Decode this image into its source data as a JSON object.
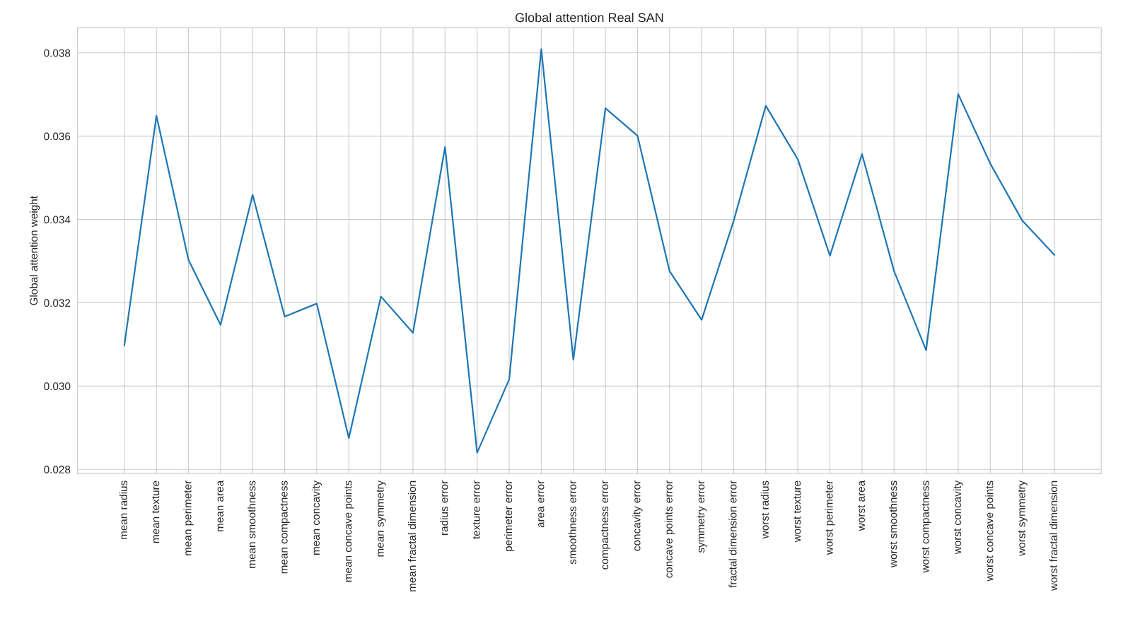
{
  "chart_data": {
    "type": "line",
    "title": "Global attention Real SAN",
    "ylabel": "Global attention weight",
    "categories": [
      "mean radius",
      "mean texture",
      "mean perimeter",
      "mean area",
      "mean smoothness",
      "mean compactness",
      "mean concavity",
      "mean concave points",
      "mean symmetry",
      "mean fractal dimension",
      "radius error",
      "texture error",
      "perimeter error",
      "area error",
      "smoothness error",
      "compactness error",
      "concavity error",
      "concave points error",
      "symmetry error",
      "fractal dimension error",
      "worst radius",
      "worst texture",
      "worst perimeter",
      "worst area",
      "worst smoothness",
      "worst compactness",
      "worst concavity",
      "worst concave points",
      "worst symmetry",
      "worst fractal dimension"
    ],
    "series": [
      {
        "color": "#1f77b4",
        "values": [
          0.03098,
          0.03649,
          0.03303,
          0.03147,
          0.03459,
          0.03167,
          0.03198,
          0.02875,
          0.03215,
          0.03128,
          0.03574,
          0.0284,
          0.03016,
          0.03809,
          0.03063,
          0.03667,
          0.03601,
          0.03276,
          0.03159,
          0.03397,
          0.03673,
          0.03544,
          0.03313,
          0.03557,
          0.03276,
          0.03086,
          0.03701,
          0.03534,
          0.03397,
          0.03315
        ]
      }
    ],
    "ylim": [
      0.0279,
      0.0386
    ],
    "yticks": [
      {
        "value": 0.028,
        "label": "0.028"
      },
      {
        "value": 0.03,
        "label": "0.030"
      },
      {
        "value": 0.032,
        "label": "0.032"
      },
      {
        "value": 0.034,
        "label": "0.034"
      },
      {
        "value": 0.036,
        "label": "0.036"
      },
      {
        "value": 0.038,
        "label": "0.038"
      }
    ],
    "grid": true
  }
}
